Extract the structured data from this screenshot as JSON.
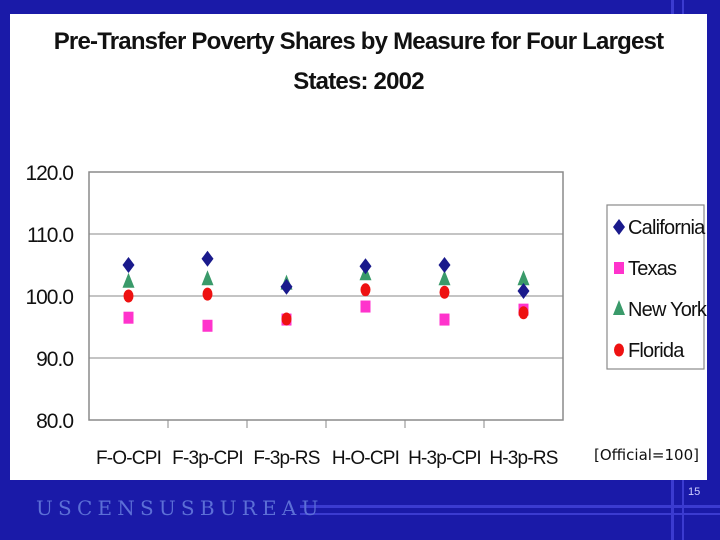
{
  "slide": {
    "note": "[Official=100]",
    "footer_brand": "USCENSUSBUREAU",
    "page_number": "15"
  },
  "chart_data": {
    "type": "scatter",
    "title_line1": "Pre-Transfer Poverty Shares by Measure for Four Largest",
    "title_line2": "States: 2002",
    "categories": [
      "F-O-CPI",
      "F-3p-CPI",
      "F-3p-RS",
      "H-O-CPI",
      "H-3p-CPI",
      "H-3p-RS"
    ],
    "ylim": [
      80,
      120
    ],
    "yticks": [
      "80.0",
      "90.0",
      "100.0",
      "110.0",
      "120.0"
    ],
    "ytick_values": [
      80,
      90,
      100,
      110,
      120
    ],
    "grid": true,
    "legend_position": "right",
    "series": [
      {
        "name": "California",
        "marker": "diamond",
        "color": "#1a1a8c",
        "values": [
          105.0,
          106.0,
          101.5,
          104.8,
          105.0,
          100.8
        ]
      },
      {
        "name": "Texas",
        "marker": "square",
        "color": "#ff33cc",
        "values": [
          96.5,
          95.2,
          96.2,
          98.3,
          96.2,
          97.8
        ]
      },
      {
        "name": "New York",
        "marker": "triangle",
        "color": "#3a9a6a",
        "values": [
          102.3,
          102.7,
          102.0,
          103.5,
          102.7,
          102.7
        ]
      },
      {
        "name": "Florida",
        "marker": "circle",
        "color": "#ee1111",
        "values": [
          100.0,
          100.3,
          96.3,
          101.0,
          100.6,
          97.3
        ]
      }
    ]
  }
}
